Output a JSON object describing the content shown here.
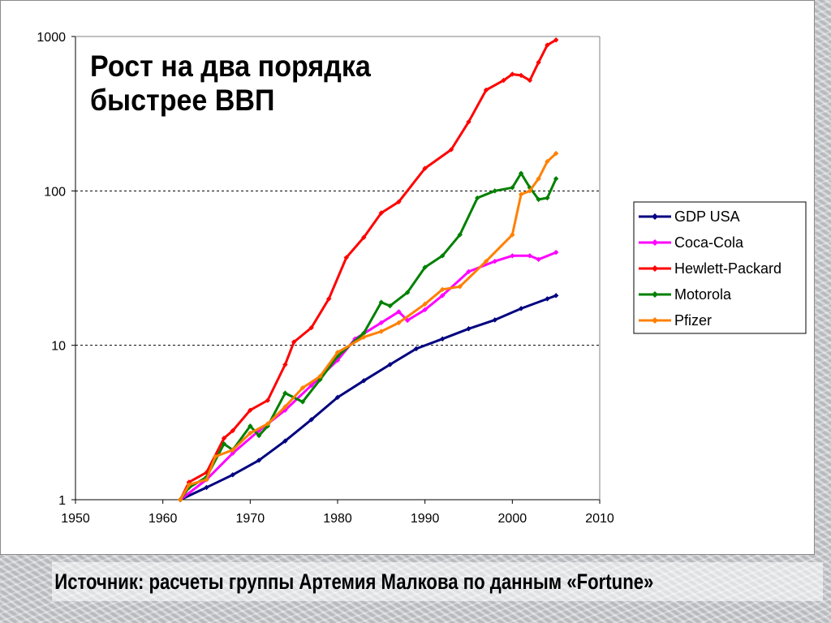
{
  "chart_data": {
    "type": "line",
    "title_lines": [
      "Рост на два порядка",
      "быстрее ВВП"
    ],
    "xlabel": "",
    "ylabel": "",
    "xlim": [
      1950,
      2010
    ],
    "ylim": [
      1,
      1000
    ],
    "y_scale": "log",
    "x_ticks": [
      "1950",
      "1960",
      "1970",
      "1980",
      "1990",
      "2000",
      "2010"
    ],
    "y_ticks": [
      "1",
      "10",
      "100",
      "1000"
    ],
    "grid": "horizontal dashed at 10 and 100",
    "legend_position": "right",
    "series": [
      {
        "name": "GDP USA",
        "color": "#000080",
        "marker": "diamond",
        "x": [
          1962,
          1965,
          1968,
          1971,
          1974,
          1977,
          1980,
          1983,
          1986,
          1989,
          1992,
          1995,
          1998,
          2001,
          2004,
          2005
        ],
        "y": [
          1,
          1.2,
          1.45,
          1.8,
          2.4,
          3.3,
          4.6,
          5.9,
          7.5,
          9.5,
          11,
          12.8,
          14.6,
          17.3,
          20,
          21
        ]
      },
      {
        "name": "Coca-Cola",
        "color": "#ff00ff",
        "marker": "diamond",
        "x": [
          1962,
          1965,
          1968,
          1971,
          1974,
          1977,
          1980,
          1982,
          1985,
          1987,
          1988,
          1990,
          1992,
          1995,
          1998,
          2000,
          2002,
          2003,
          2005
        ],
        "y": [
          1,
          1.35,
          2.0,
          2.8,
          3.8,
          5.5,
          8.0,
          11,
          14,
          16.5,
          14.5,
          17,
          21,
          30,
          35,
          38,
          38,
          36,
          40
        ]
      },
      {
        "name": "Hewlett-Packard",
        "color": "#ff0000",
        "marker": "diamond",
        "x": [
          1962,
          1963,
          1965,
          1967,
          1968,
          1970,
          1972,
          1974,
          1975,
          1977,
          1979,
          1981,
          1983,
          1985,
          1987,
          1990,
          1993,
          1995,
          1997,
          1999,
          2000,
          2001,
          2002,
          2003,
          2004,
          2005
        ],
        "y": [
          1,
          1.3,
          1.5,
          2.5,
          2.8,
          3.8,
          4.4,
          7.5,
          10.5,
          13,
          20,
          37,
          50,
          72,
          85,
          140,
          185,
          280,
          450,
          520,
          570,
          560,
          520,
          680,
          880,
          950
        ]
      },
      {
        "name": "Motorola",
        "color": "#008000",
        "marker": "diamond",
        "x": [
          1962,
          1963,
          1965,
          1967,
          1968,
          1970,
          1971,
          1972,
          1974,
          1976,
          1978,
          1980,
          1983,
          1985,
          1986,
          1988,
          1990,
          1992,
          1994,
          1996,
          1998,
          2000,
          2001,
          2002,
          2003,
          2004,
          2005
        ],
        "y": [
          1,
          1.2,
          1.4,
          2.3,
          2.1,
          3.0,
          2.6,
          3.0,
          4.9,
          4.3,
          6.0,
          8.5,
          12,
          19,
          18,
          22,
          32,
          38,
          52,
          90,
          100,
          105,
          130,
          105,
          88,
          90,
          120
        ]
      },
      {
        "name": "Pfizer",
        "color": "#ff8000",
        "marker": "diamond",
        "x": [
          1962,
          1963,
          1965,
          1966,
          1968,
          1970,
          1972,
          1974,
          1976,
          1978,
          1980,
          1983,
          1985,
          1987,
          1990,
          1992,
          1994,
          1997,
          2000,
          2001,
          2002,
          2003,
          2004,
          2005
        ],
        "y": [
          1,
          1.25,
          1.35,
          1.9,
          2.1,
          2.7,
          3.1,
          4.0,
          5.3,
          6.3,
          9.0,
          11.3,
          12.3,
          14,
          18.5,
          23,
          24,
          35,
          52,
          95,
          100,
          120,
          155,
          175
        ]
      }
    ]
  },
  "source_caption": "Источник: расчеты группы Артемия Малкова по данным «Fortune»"
}
